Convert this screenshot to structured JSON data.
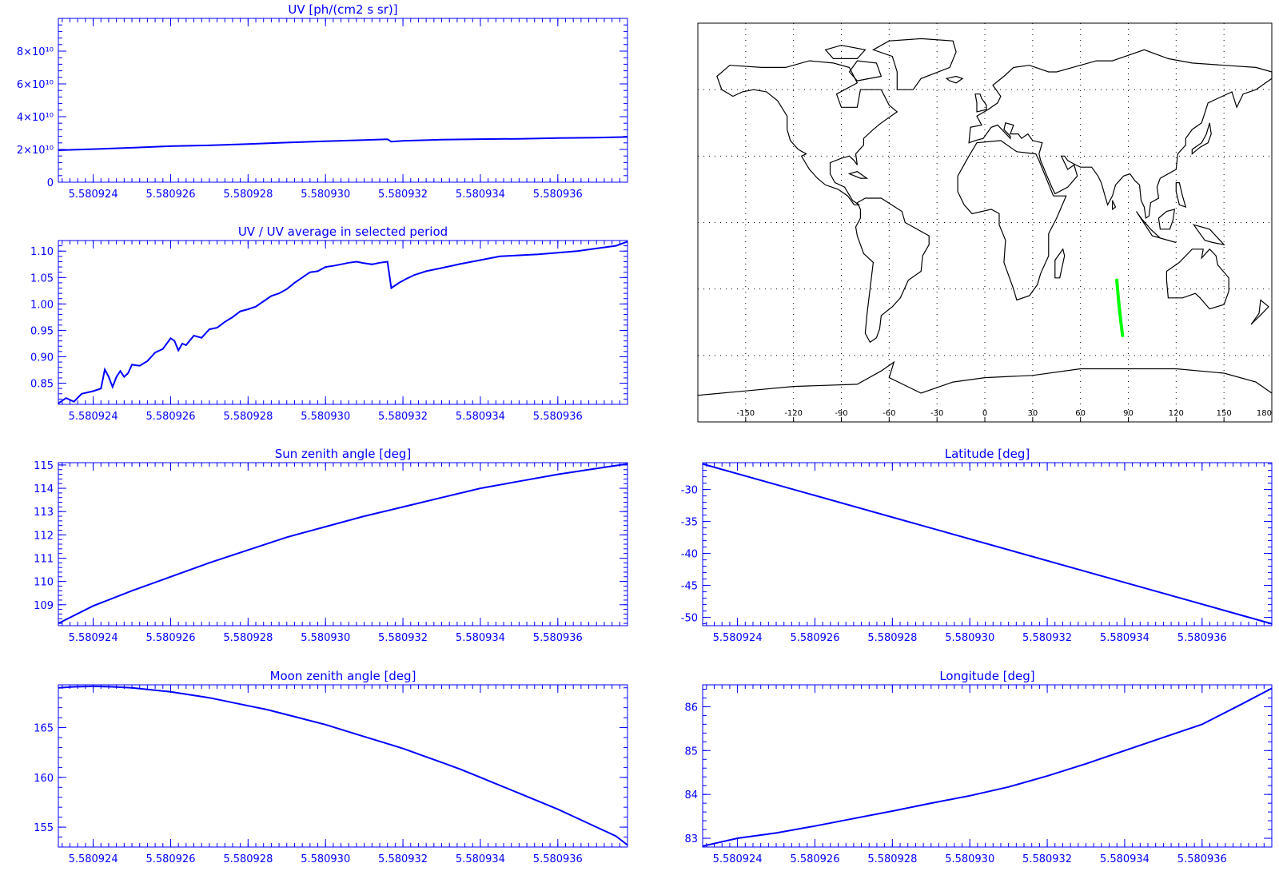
{
  "colors": {
    "axis": "#0000ff",
    "line": "#0000ff",
    "track": "#00ff00",
    "coast": "#000000",
    "grid": "#000000"
  },
  "x_ticks": [
    "5.580924",
    "5.580926",
    "5.580928",
    "5.580930",
    "5.580932",
    "5.580934",
    "5.580936"
  ],
  "chart_data": [
    {
      "id": "uv",
      "type": "line",
      "title": "UV [ph/(cm2 s sr)]",
      "xlim": [
        5.5809231,
        5.5809378
      ],
      "ylim": [
        0,
        100000000000.0
      ],
      "ytick_values": [
        0,
        20000000000.0,
        40000000000.0,
        60000000000.0,
        80000000000.0
      ],
      "ytick_labels": [
        "0",
        "2×10¹⁰",
        "4×10¹⁰",
        "6×10¹⁰",
        "8×10¹⁰"
      ],
      "grid": false,
      "series": [
        {
          "x": [
            5.5809231,
            5.580924,
            5.580925,
            5.580926,
            5.580927,
            5.580928,
            5.580929,
            5.58093,
            5.580931,
            5.5809316,
            5.5809317,
            5.580932,
            5.580933,
            5.580934,
            5.580935,
            5.580936,
            5.580937,
            5.5809378
          ],
          "y": [
            19500000000.0,
            20200000000.0,
            21000000000.0,
            22000000000.0,
            22500000000.0,
            23300000000.0,
            24200000000.0,
            25000000000.0,
            25700000000.0,
            26200000000.0,
            24800000000.0,
            25200000000.0,
            26000000000.0,
            26300000000.0,
            26500000000.0,
            27000000000.0,
            27200000000.0,
            27600000000.0
          ]
        }
      ]
    },
    {
      "id": "uvratio",
      "type": "line",
      "title": "UV / UV average in selected period",
      "xlim": [
        5.5809231,
        5.5809378
      ],
      "ylim": [
        0.81,
        1.12
      ],
      "ytick_values": [
        0.85,
        0.9,
        0.95,
        1.0,
        1.05,
        1.1
      ],
      "ytick_labels": [
        "0.85",
        "0.90",
        "0.95",
        "1.00",
        "1.05",
        "1.10"
      ],
      "grid": false,
      "series": [
        {
          "x": [
            5.5809231,
            5.5809233,
            5.5809235,
            5.5809237,
            5.580924,
            5.5809242,
            5.5809243,
            5.5809244,
            5.5809245,
            5.5809246,
            5.5809247,
            5.5809248,
            5.5809249,
            5.580925,
            5.5809252,
            5.5809254,
            5.5809256,
            5.5809258,
            5.580926,
            5.5809261,
            5.5809262,
            5.5809263,
            5.5809264,
            5.5809266,
            5.5809268,
            5.580927,
            5.5809272,
            5.5809274,
            5.5809276,
            5.5809278,
            5.580928,
            5.5809282,
            5.5809284,
            5.5809286,
            5.5809288,
            5.580929,
            5.5809292,
            5.5809294,
            5.5809296,
            5.5809298,
            5.58093,
            5.5809302,
            5.5809304,
            5.5809306,
            5.5809308,
            5.580931,
            5.5809312,
            5.5809314,
            5.5809316,
            5.5809317,
            5.5809319,
            5.5809321,
            5.5809323,
            5.5809326,
            5.580933,
            5.5809335,
            5.580934,
            5.5809345,
            5.580935,
            5.5809355,
            5.580936,
            5.5809365,
            5.580937,
            5.5809375,
            5.5809378
          ],
          "y": [
            0.812,
            0.822,
            0.815,
            0.83,
            0.835,
            0.84,
            0.876,
            0.862,
            0.843,
            0.862,
            0.873,
            0.862,
            0.869,
            0.885,
            0.883,
            0.892,
            0.908,
            0.915,
            0.935,
            0.93,
            0.912,
            0.925,
            0.922,
            0.94,
            0.936,
            0.952,
            0.955,
            0.966,
            0.975,
            0.986,
            0.99,
            0.995,
            1.005,
            1.015,
            1.02,
            1.028,
            1.04,
            1.05,
            1.06,
            1.062,
            1.07,
            1.072,
            1.075,
            1.078,
            1.08,
            1.077,
            1.075,
            1.078,
            1.08,
            1.03,
            1.04,
            1.048,
            1.055,
            1.062,
            1.068,
            1.076,
            1.083,
            1.09,
            1.092,
            1.094,
            1.097,
            1.1,
            1.105,
            1.11,
            1.118
          ]
        }
      ]
    },
    {
      "id": "sza",
      "type": "line",
      "title": "Sun zenith angle [deg]",
      "xlim": [
        5.5809231,
        5.5809378
      ],
      "ylim": [
        108.1,
        115.1
      ],
      "ytick_values": [
        109,
        110,
        111,
        112,
        113,
        114,
        115
      ],
      "ytick_labels": [
        "109",
        "110",
        "111",
        "112",
        "113",
        "114",
        "115"
      ],
      "grid": false,
      "series": [
        {
          "x": [
            5.5809231,
            5.580924,
            5.580925,
            5.580926,
            5.580927,
            5.580928,
            5.580929,
            5.58093,
            5.580931,
            5.580932,
            5.580933,
            5.580934,
            5.580935,
            5.580936,
            5.580937,
            5.5809378
          ],
          "y": [
            108.2,
            108.95,
            109.6,
            110.2,
            110.8,
            111.35,
            111.9,
            112.35,
            112.8,
            113.2,
            113.6,
            114.0,
            114.3,
            114.6,
            114.85,
            115.05
          ]
        }
      ]
    },
    {
      "id": "lat",
      "type": "line",
      "title": "Latitude [deg]",
      "xlim": [
        5.5809231,
        5.5809378
      ],
      "ylim": [
        -51.3,
        -25.8
      ],
      "ytick_values": [
        -30,
        -35,
        -40,
        -45,
        -50
      ],
      "ytick_labels": [
        "-30",
        "-35",
        "-40",
        "-45",
        "-50"
      ],
      "grid": false,
      "series": [
        {
          "x": [
            5.5809231,
            5.5809378
          ],
          "y": [
            -26.0,
            -51.0
          ]
        }
      ]
    },
    {
      "id": "mza",
      "type": "line",
      "title": "Moon zenith angle [deg]",
      "xlim": [
        5.5809231,
        5.5809378
      ],
      "ylim": [
        153.0,
        169.3
      ],
      "ytick_values": [
        155,
        160,
        165
      ],
      "ytick_labels": [
        "155",
        "160",
        "165"
      ],
      "grid": false,
      "series": [
        {
          "x": [
            5.5809231,
            5.5809235,
            5.580924,
            5.5809245,
            5.580925,
            5.5809255,
            5.580926,
            5.5809265,
            5.580927,
            5.5809275,
            5.580928,
            5.5809285,
            5.580929,
            5.5809295,
            5.58093,
            5.5809305,
            5.580931,
            5.5809315,
            5.580932,
            5.5809325,
            5.580933,
            5.5809335,
            5.580934,
            5.5809345,
            5.580935,
            5.5809355,
            5.580936,
            5.5809365,
            5.580937,
            5.5809375,
            5.5809378
          ],
          "y": [
            169.0,
            169.1,
            169.15,
            169.1,
            169.0,
            168.8,
            168.6,
            168.3,
            168.0,
            167.6,
            167.2,
            166.8,
            166.3,
            165.8,
            165.3,
            164.7,
            164.1,
            163.5,
            162.9,
            162.2,
            161.5,
            160.8,
            160.0,
            159.2,
            158.4,
            157.6,
            156.8,
            155.9,
            155.0,
            154.1,
            153.2
          ]
        }
      ]
    },
    {
      "id": "lon",
      "type": "line",
      "title": "Longitude [deg]",
      "xlim": [
        5.5809231,
        5.5809378
      ],
      "ylim": [
        82.8,
        86.5
      ],
      "ytick_values": [
        83,
        84,
        85,
        86
      ],
      "ytick_labels": [
        "83",
        "84",
        "85",
        "86"
      ],
      "grid": false,
      "series": [
        {
          "x": [
            5.5809231,
            5.580924,
            5.580925,
            5.580926,
            5.580927,
            5.580928,
            5.580929,
            5.58093,
            5.580931,
            5.580932,
            5.580933,
            5.580934,
            5.580935,
            5.580936,
            5.580937,
            5.5809378
          ],
          "y": [
            82.82,
            83.0,
            83.12,
            83.28,
            83.45,
            83.62,
            83.8,
            83.97,
            84.17,
            84.42,
            84.7,
            85.0,
            85.3,
            85.6,
            86.05,
            86.42
          ]
        }
      ]
    }
  ],
  "map": {
    "xtick_labels": [
      "-150",
      "-120",
      "-90",
      "-60",
      "-30",
      "0",
      "30",
      "60",
      "90",
      "120",
      "150",
      "180"
    ],
    "lon_range": [
      -180,
      180
    ],
    "lat_range": [
      -90,
      90
    ],
    "gridlines_lon": [
      -150,
      -120,
      -90,
      -60,
      -30,
      0,
      30,
      60,
      90,
      120,
      150
    ],
    "gridlines_lat": [
      -60,
      -30,
      0,
      30,
      60
    ],
    "track": {
      "lon": [
        82.8,
        83.5,
        84.3,
        85.2,
        86.4
      ],
      "lat": [
        -26,
        -32,
        -38,
        -44,
        -51
      ]
    }
  }
}
